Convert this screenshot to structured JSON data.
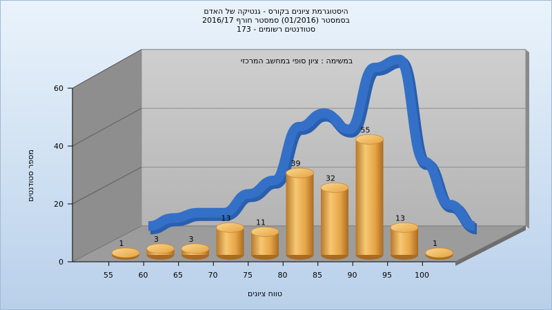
{
  "titles": {
    "line1": "היסטוגרמת ציונים בקורס - גנטיקה של האדם",
    "line2": "בסמסטר (01/2016) סמסטר חורף 2016/17",
    "line3": "סטודנטים רשומים - 173"
  },
  "colors": {
    "bar": "#e8a94c",
    "curve": "#3470c7",
    "back_wall": "#c4c4c4",
    "floor": "#9a9a9a"
  },
  "chart_data": {
    "type": "bar",
    "title": "במשימה : ציון סופי במחשב המרכזי",
    "xlabel": "טווח ציונים",
    "ylabel": "מספר סטודנטים",
    "categories": [
      "55",
      "60",
      "65",
      "70",
      "75",
      "80",
      "85",
      "90",
      "95",
      "100"
    ],
    "values": [
      1,
      3,
      3,
      13,
      11,
      39,
      32,
      55,
      13,
      1
    ],
    "curve": [
      2,
      5,
      7,
      7,
      14,
      19,
      39,
      44,
      38,
      61,
      64,
      26,
      10,
      2
    ],
    "ylim": [
      0,
      60
    ],
    "yticks": [
      0,
      20,
      40,
      60
    ],
    "grid": true,
    "style": "3d-cylinder"
  }
}
